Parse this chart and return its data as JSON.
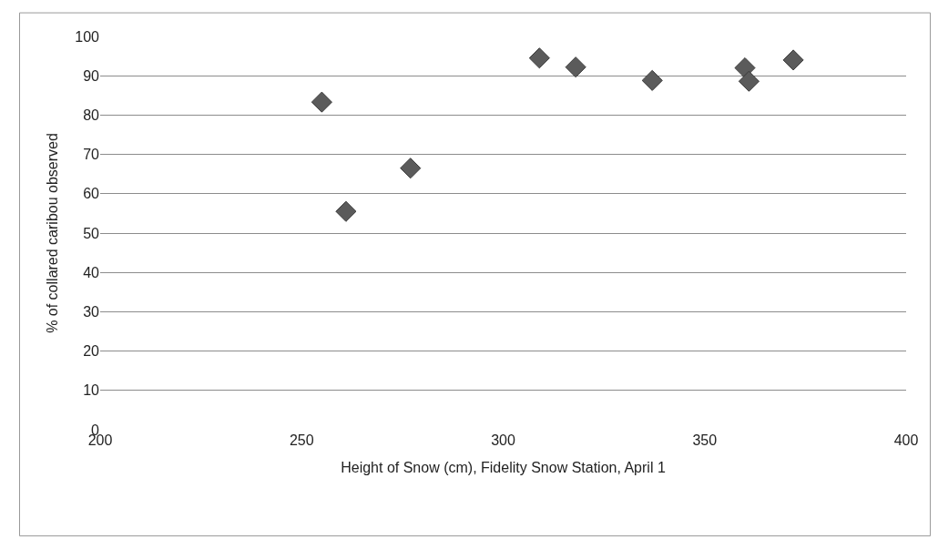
{
  "chart_data": {
    "type": "scatter",
    "xlabel": "Height of Snow (cm), Fidelity Snow Station, April 1",
    "ylabel": "% of collared caribou observed",
    "x": [
      255,
      261,
      277,
      309,
      318,
      337,
      360,
      361,
      372
    ],
    "values": [
      83.3,
      55.5,
      66.5,
      94.5,
      92.2,
      88.8,
      92.0,
      88.6,
      94.0
    ],
    "color": "#5b5b5b",
    "marker": "diamond",
    "xlim": [
      200,
      400
    ],
    "xticks": [
      200,
      250,
      300,
      350,
      400
    ],
    "ylim": [
      0,
      100
    ],
    "yticks": [
      0,
      10,
      20,
      30,
      40,
      50,
      60,
      70,
      80,
      90,
      100
    ],
    "grid": "y",
    "legend": false
  }
}
